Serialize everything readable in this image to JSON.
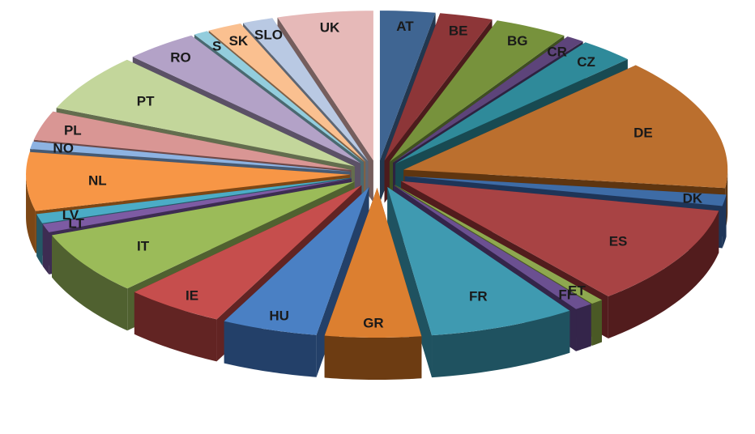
{
  "chart_data": {
    "type": "pie",
    "variant": "3d-exploded",
    "title": "",
    "legend": "none",
    "slices": [
      {
        "label": "AT",
        "value": 2.7,
        "color": "#3f6592",
        "side": "#22374f"
      },
      {
        "label": "BE",
        "value": 2.6,
        "color": "#8d3638",
        "side": "#4c1b1c"
      },
      {
        "label": "BG",
        "value": 3.6,
        "color": "#77923c",
        "side": "#3f4f20"
      },
      {
        "label": "CR",
        "value": 0.9,
        "color": "#5d447a",
        "side": "#2e2240"
      },
      {
        "label": "CZ",
        "value": 2.7,
        "color": "#2f8a9a",
        "side": "#184a52"
      },
      {
        "label": "DE",
        "value": 14.0,
        "color": "#bb6f2e",
        "side": "#5e3510"
      },
      {
        "label": "DK",
        "value": 1.2,
        "color": "#3e6ca6",
        "side": "#1e3558"
      },
      {
        "label": "ES",
        "value": 10.6,
        "color": "#a84344",
        "side": "#521c1d"
      },
      {
        "label": "ET",
        "value": 0.6,
        "color": "#8ea84f",
        "side": "#4a5925"
      },
      {
        "label": "FI",
        "value": 0.9,
        "color": "#6b5091",
        "side": "#34254a"
      },
      {
        "label": "FR",
        "value": 7.2,
        "color": "#3f9ab1",
        "side": "#1f5260"
      },
      {
        "label": "GR",
        "value": 4.7,
        "color": "#dc7f30",
        "side": "#6d3c12"
      },
      {
        "label": "HU",
        "value": 4.7,
        "color": "#4a80c4",
        "side": "#234069"
      },
      {
        "label": "IE",
        "value": 4.9,
        "color": "#c64e4d",
        "side": "#622423"
      },
      {
        "label": "IT",
        "value": 6.7,
        "color": "#9bbb59",
        "side": "#506130"
      },
      {
        "label": "LT",
        "value": 0.9,
        "color": "#7d5ba3",
        "side": "#3d2c52"
      },
      {
        "label": "LV",
        "value": 1.0,
        "color": "#4bacc6",
        "side": "#245866"
      },
      {
        "label": "NL",
        "value": 6.2,
        "color": "#f79646",
        "side": "#7d4715"
      },
      {
        "label": "NO",
        "value": 0.8,
        "color": "#8db3e2",
        "side": "#465a73"
      },
      {
        "label": "PL",
        "value": 3.1,
        "color": "#d99694",
        "side": "#6e4948"
      },
      {
        "label": "PT",
        "value": 6.1,
        "color": "#c3d69b",
        "side": "#636d4e"
      },
      {
        "label": "RO",
        "value": 3.6,
        "color": "#b3a2c7",
        "side": "#5b5166"
      },
      {
        "label": "S",
        "value": 0.7,
        "color": "#93cddd",
        "side": "#4a6970"
      },
      {
        "label": "SK",
        "value": 1.7,
        "color": "#fac090",
        "side": "#806146"
      },
      {
        "label": "SLO",
        "value": 1.5,
        "color": "#b9c9e3",
        "side": "#5d6674"
      },
      {
        "label": "UK",
        "value": 4.7,
        "color": "#e6b9b8",
        "side": "#755e5d"
      }
    ]
  }
}
